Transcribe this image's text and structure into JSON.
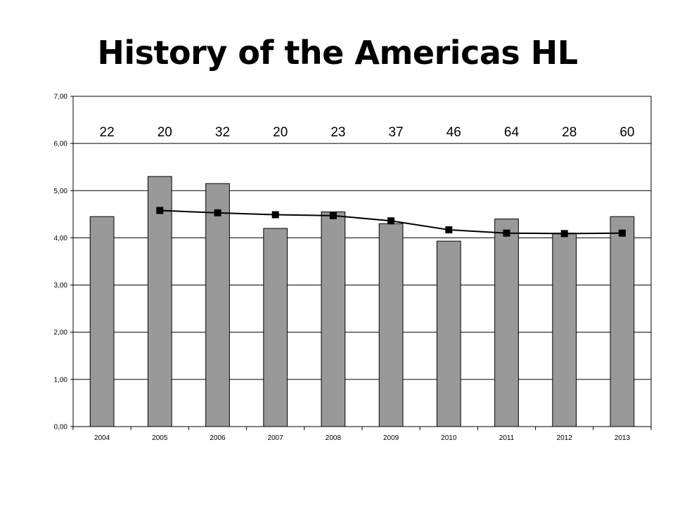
{
  "chart_data": {
    "type": "bar",
    "title": "History of the Americas HL",
    "categories": [
      "2004",
      "2005",
      "2006",
      "2007",
      "2008",
      "2009",
      "2010",
      "2011",
      "2012",
      "2013"
    ],
    "series": [
      {
        "type": "bar",
        "values": [
          4.45,
          5.3,
          5.15,
          4.2,
          4.55,
          4.3,
          3.93,
          4.4,
          4.1,
          4.45
        ]
      },
      {
        "type": "line",
        "values": [
          null,
          4.58,
          4.53,
          4.49,
          4.47,
          4.36,
          4.17,
          4.1,
          4.09,
          4.1
        ]
      }
    ],
    "counts": [
      "22",
      "20",
      "32",
      "20",
      "23",
      "37",
      "46",
      "64",
      "28",
      "60"
    ],
    "ylim": [
      0,
      7
    ],
    "yticks": [
      "0,00",
      "1,00",
      "2,00",
      "3,00",
      "4,00",
      "5,00",
      "6,00",
      "7,00"
    ],
    "grid": true,
    "legend": "none",
    "colors": {
      "bar": "#999999",
      "line": "#000000"
    }
  }
}
